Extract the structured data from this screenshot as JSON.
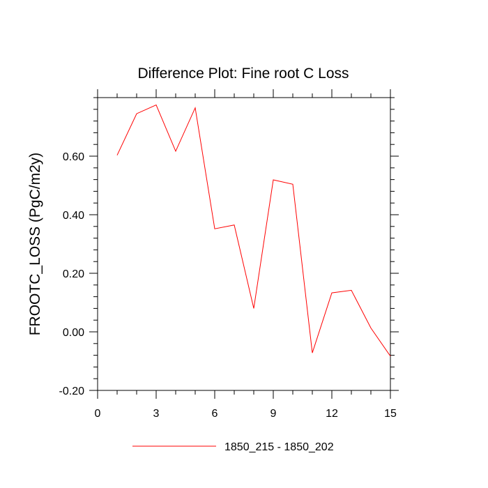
{
  "chart_data": {
    "type": "line",
    "title": "Difference Plot: Fine root C Loss",
    "xlabel": "",
    "ylabel": "FROOTC_LOSS  (PgC/m2y)",
    "xlim": [
      0,
      15
    ],
    "ylim": [
      -0.2,
      0.8
    ],
    "x_ticks": [
      0,
      3,
      6,
      9,
      12,
      15
    ],
    "x_tick_labels": [
      "0",
      "3",
      "6",
      "9",
      "12",
      "15"
    ],
    "x_minor_step": 1,
    "y_ticks": [
      -0.2,
      0.0,
      0.2,
      0.4,
      0.6
    ],
    "y_tick_labels": [
      "-0.20",
      "0.00",
      "0.20",
      "0.40",
      "0.60"
    ],
    "y_minor_step": 0.04,
    "grid": false,
    "legend_position": "bottom",
    "series": [
      {
        "name": "1850_215 - 1850_202",
        "color": "#ff0000",
        "x": [
          1,
          2,
          3,
          4,
          5,
          6,
          7,
          8,
          9,
          10,
          11,
          12,
          13,
          14,
          15
        ],
        "values": [
          0.603,
          0.745,
          0.775,
          0.617,
          0.765,
          0.352,
          0.365,
          0.08,
          0.519,
          0.504,
          -0.072,
          0.133,
          0.142,
          0.013,
          -0.083
        ]
      }
    ]
  }
}
